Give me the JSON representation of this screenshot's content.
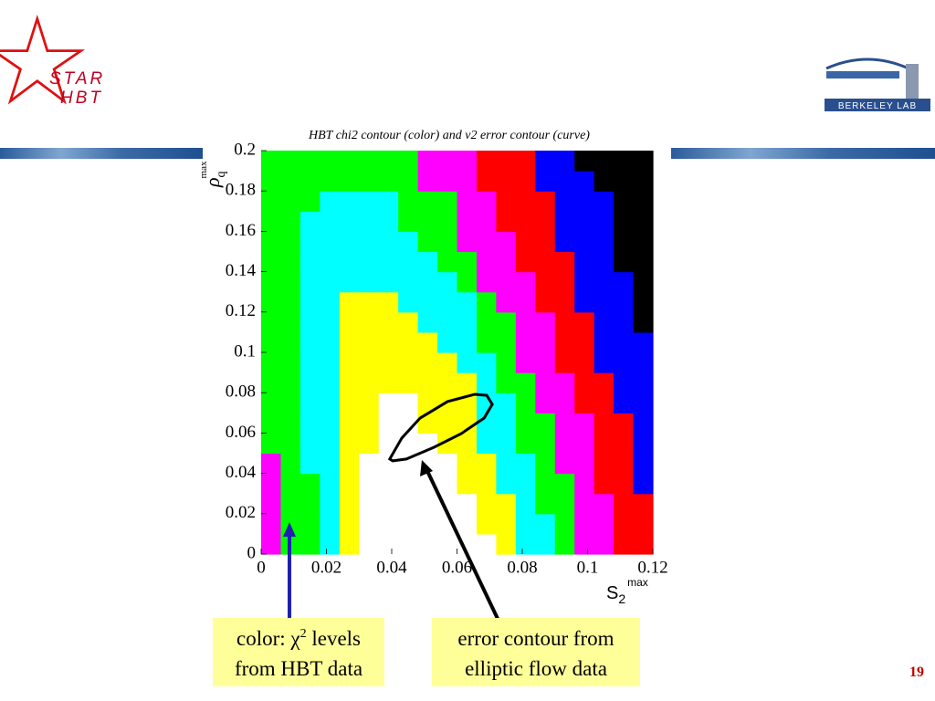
{
  "logo": {
    "line1": "STAR",
    "line2": "HBT"
  },
  "lab_logo": "Berkeley Lab",
  "chart_data": {
    "type": "contour",
    "title": "HBT chi2 contour (color) and v2 error contour (curve)",
    "xlabel": {
      "main": "S",
      "sub": "2",
      "sup": "max"
    },
    "ylabel": {
      "main": "ρ",
      "sub": "q",
      "sup": "max"
    },
    "xlim": [
      0,
      0.12
    ],
    "ylim": [
      0,
      0.2
    ],
    "xticks": [
      0,
      0.02,
      0.04,
      0.06,
      0.08,
      0.1,
      0.12
    ],
    "yticks": [
      0,
      0.02,
      0.04,
      0.06,
      0.08,
      0.1,
      0.12,
      0.14,
      0.16,
      0.18,
      0.2
    ],
    "level_colors": [
      "#ffffff",
      "#ffff00",
      "#00ffff",
      "#00ff00",
      "#ff00ff",
      "#ff0000",
      "#0000ff",
      "#000000"
    ],
    "z": [
      [
        4,
        3,
        3,
        2,
        1,
        0,
        0,
        0,
        0,
        0,
        0,
        0,
        1,
        2,
        2,
        3,
        4,
        4,
        5,
        5
      ],
      [
        4,
        3,
        3,
        2,
        1,
        0,
        0,
        0,
        0,
        0,
        0,
        1,
        1,
        2,
        2,
        3,
        4,
        4,
        5,
        5
      ],
      [
        4,
        3,
        3,
        2,
        1,
        0,
        0,
        0,
        0,
        0,
        0,
        1,
        1,
        2,
        3,
        3,
        4,
        4,
        5,
        5
      ],
      [
        4,
        3,
        3,
        2,
        1,
        0,
        0,
        0,
        0,
        0,
        1,
        1,
        2,
        2,
        3,
        3,
        4,
        5,
        5,
        6
      ],
      [
        4,
        3,
        2,
        2,
        1,
        0,
        0,
        0,
        0,
        0,
        1,
        1,
        2,
        2,
        3,
        4,
        4,
        5,
        5,
        6
      ],
      [
        3,
        3,
        2,
        2,
        1,
        1,
        0,
        0,
        0,
        1,
        1,
        2,
        2,
        3,
        3,
        4,
        4,
        5,
        5,
        6
      ],
      [
        3,
        3,
        2,
        2,
        1,
        1,
        0,
        0,
        1,
        1,
        1,
        2,
        2,
        3,
        3,
        4,
        4,
        5,
        5,
        6
      ],
      [
        3,
        3,
        2,
        2,
        1,
        1,
        0,
        0,
        1,
        1,
        1,
        2,
        2,
        3,
        4,
        4,
        5,
        5,
        6,
        6
      ],
      [
        3,
        3,
        2,
        2,
        1,
        1,
        1,
        1,
        1,
        1,
        1,
        2,
        3,
        3,
        4,
        4,
        5,
        5,
        6,
        6
      ],
      [
        3,
        3,
        2,
        2,
        1,
        1,
        1,
        1,
        1,
        1,
        2,
        2,
        3,
        4,
        4,
        5,
        5,
        6,
        6,
        6
      ],
      [
        3,
        3,
        2,
        2,
        1,
        1,
        1,
        1,
        1,
        2,
        2,
        3,
        3,
        4,
        4,
        5,
        5,
        6,
        6,
        6
      ],
      [
        3,
        3,
        2,
        2,
        1,
        1,
        1,
        1,
        2,
        2,
        2,
        3,
        3,
        4,
        4,
        5,
        5,
        6,
        6,
        7
      ],
      [
        3,
        3,
        2,
        2,
        1,
        1,
        1,
        2,
        2,
        2,
        2,
        3,
        4,
        4,
        5,
        5,
        6,
        6,
        6,
        7
      ],
      [
        3,
        3,
        2,
        2,
        2,
        2,
        2,
        2,
        2,
        2,
        3,
        4,
        4,
        4,
        5,
        5,
        6,
        6,
        6,
        7
      ],
      [
        3,
        3,
        2,
        2,
        2,
        2,
        2,
        2,
        2,
        3,
        3,
        4,
        4,
        5,
        5,
        5,
        6,
        6,
        7,
        7
      ],
      [
        3,
        3,
        2,
        2,
        2,
        2,
        2,
        2,
        3,
        3,
        4,
        4,
        4,
        5,
        5,
        6,
        6,
        6,
        7,
        7
      ],
      [
        3,
        3,
        2,
        2,
        2,
        2,
        2,
        3,
        3,
        3,
        4,
        4,
        5,
        5,
        5,
        6,
        6,
        6,
        7,
        7
      ],
      [
        3,
        3,
        3,
        2,
        2,
        2,
        2,
        3,
        3,
        3,
        4,
        4,
        5,
        5,
        5,
        6,
        6,
        6,
        7,
        7
      ],
      [
        3,
        3,
        3,
        3,
        3,
        3,
        3,
        3,
        4,
        4,
        4,
        5,
        5,
        5,
        6,
        6,
        6,
        7,
        7,
        7
      ],
      [
        3,
        3,
        3,
        3,
        3,
        3,
        3,
        3,
        4,
        4,
        4,
        5,
        5,
        5,
        6,
        6,
        7,
        7,
        7,
        7
      ]
    ],
    "curve": {
      "color": "#000000",
      "x": [
        0.0394,
        0.0431,
        0.0487,
        0.0571,
        0.0655,
        0.0691,
        0.0708,
        0.0683,
        0.0613,
        0.0529,
        0.0445,
        0.0403
      ],
      "y": [
        0.0471,
        0.0575,
        0.0674,
        0.0756,
        0.0792,
        0.0787,
        0.0742,
        0.0674,
        0.0597,
        0.0529,
        0.0471,
        0.0462
      ]
    }
  },
  "caption_left": {
    "pre": "color: χ",
    "sup": "2",
    "post": " levels",
    "line2": "from HBT data"
  },
  "caption_right": {
    "line1": "error contour from",
    "line2": "elliptic flow data"
  },
  "page_number": "19"
}
